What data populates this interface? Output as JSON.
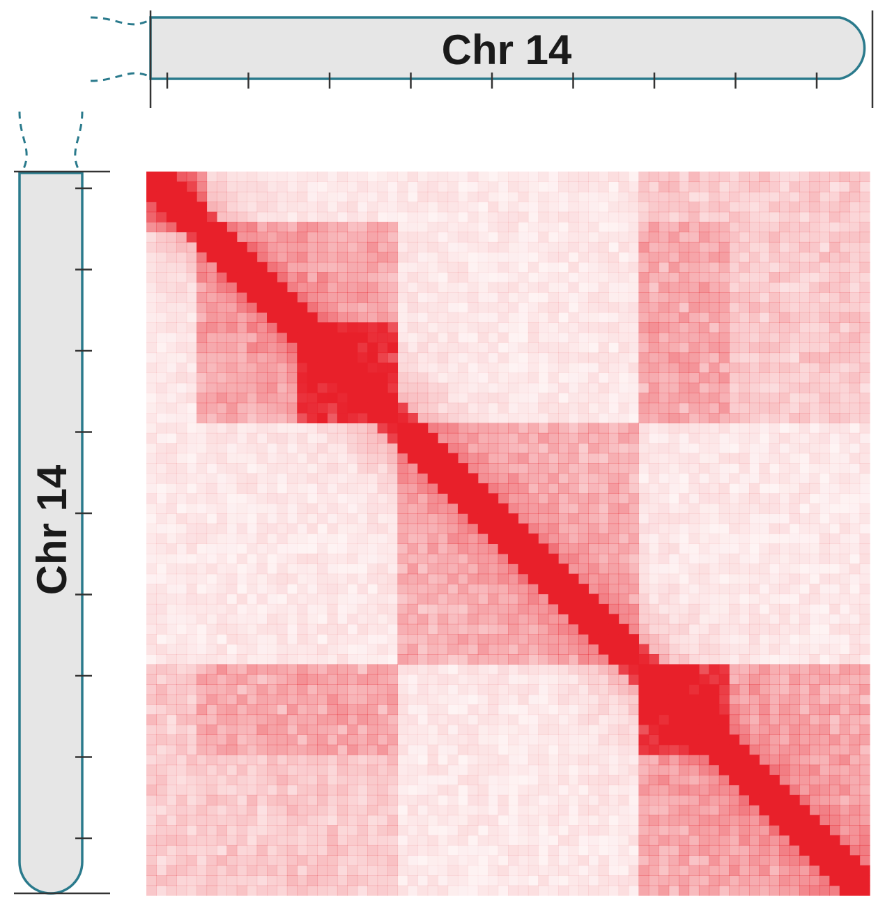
{
  "top_chromosome": {
    "label": "Chr 14"
  },
  "left_chromosome": {
    "label": "Chr 14"
  },
  "colors": {
    "heat": "#e8202a",
    "chromosome_fill": "#e6e6e6",
    "chromosome_outline": "#2a7a8c",
    "axis_line": "#333333"
  },
  "chart_data": {
    "type": "heatmap",
    "matrix_bins": 72,
    "tads": [
      {
        "start_bin": 0,
        "end_bin": 6,
        "strength": 0.55
      },
      {
        "start_bin": 5,
        "end_bin": 25,
        "strength": 0.35
      },
      {
        "start_bin": 15,
        "end_bin": 25,
        "strength": 0.55
      },
      {
        "start_bin": 25,
        "end_bin": 49,
        "strength": 0.3
      },
      {
        "start_bin": 49,
        "end_bin": 58,
        "strength": 0.6
      },
      {
        "start_bin": 49,
        "end_bin": 72,
        "strength": 0.35
      }
    ],
    "off_diagonal_blocks": [
      {
        "rows": [
          49,
          58
        ],
        "cols": [
          5,
          25
        ],
        "strength": 0.22
      },
      {
        "rows": [
          0,
          25
        ],
        "cols": [
          49,
          72
        ],
        "strength": 0.18
      }
    ]
  }
}
